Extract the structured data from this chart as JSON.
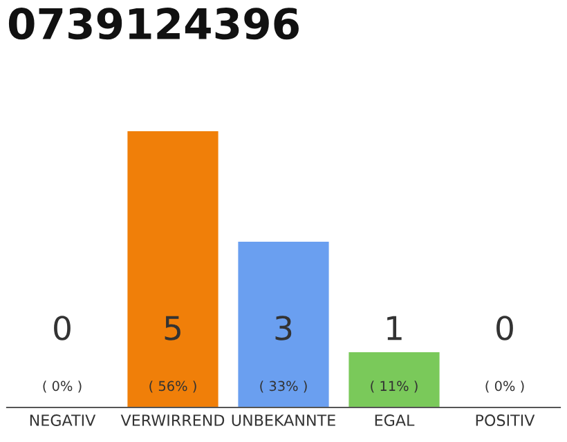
{
  "chart_data": {
    "type": "bar",
    "title": "0739124396",
    "categories": [
      "NEGATIV",
      "VERWIRREND",
      "UNBEKANNTE",
      "EGAL",
      "POSITIV"
    ],
    "values": [
      0,
      5,
      3,
      1,
      0
    ],
    "colors": [
      "#bdbdbd",
      "#f07f09",
      "#6a9ff0",
      "#7ac95a",
      "#bdbdbd"
    ],
    "value_labels": [
      "0",
      "5",
      "3",
      "1",
      "0"
    ],
    "annotations": [
      "( 0% )",
      "( 56% )",
      "( 33% )",
      "( 11% )",
      "( 0% )"
    ],
    "tick_labels": "x",
    "legend": false
  }
}
